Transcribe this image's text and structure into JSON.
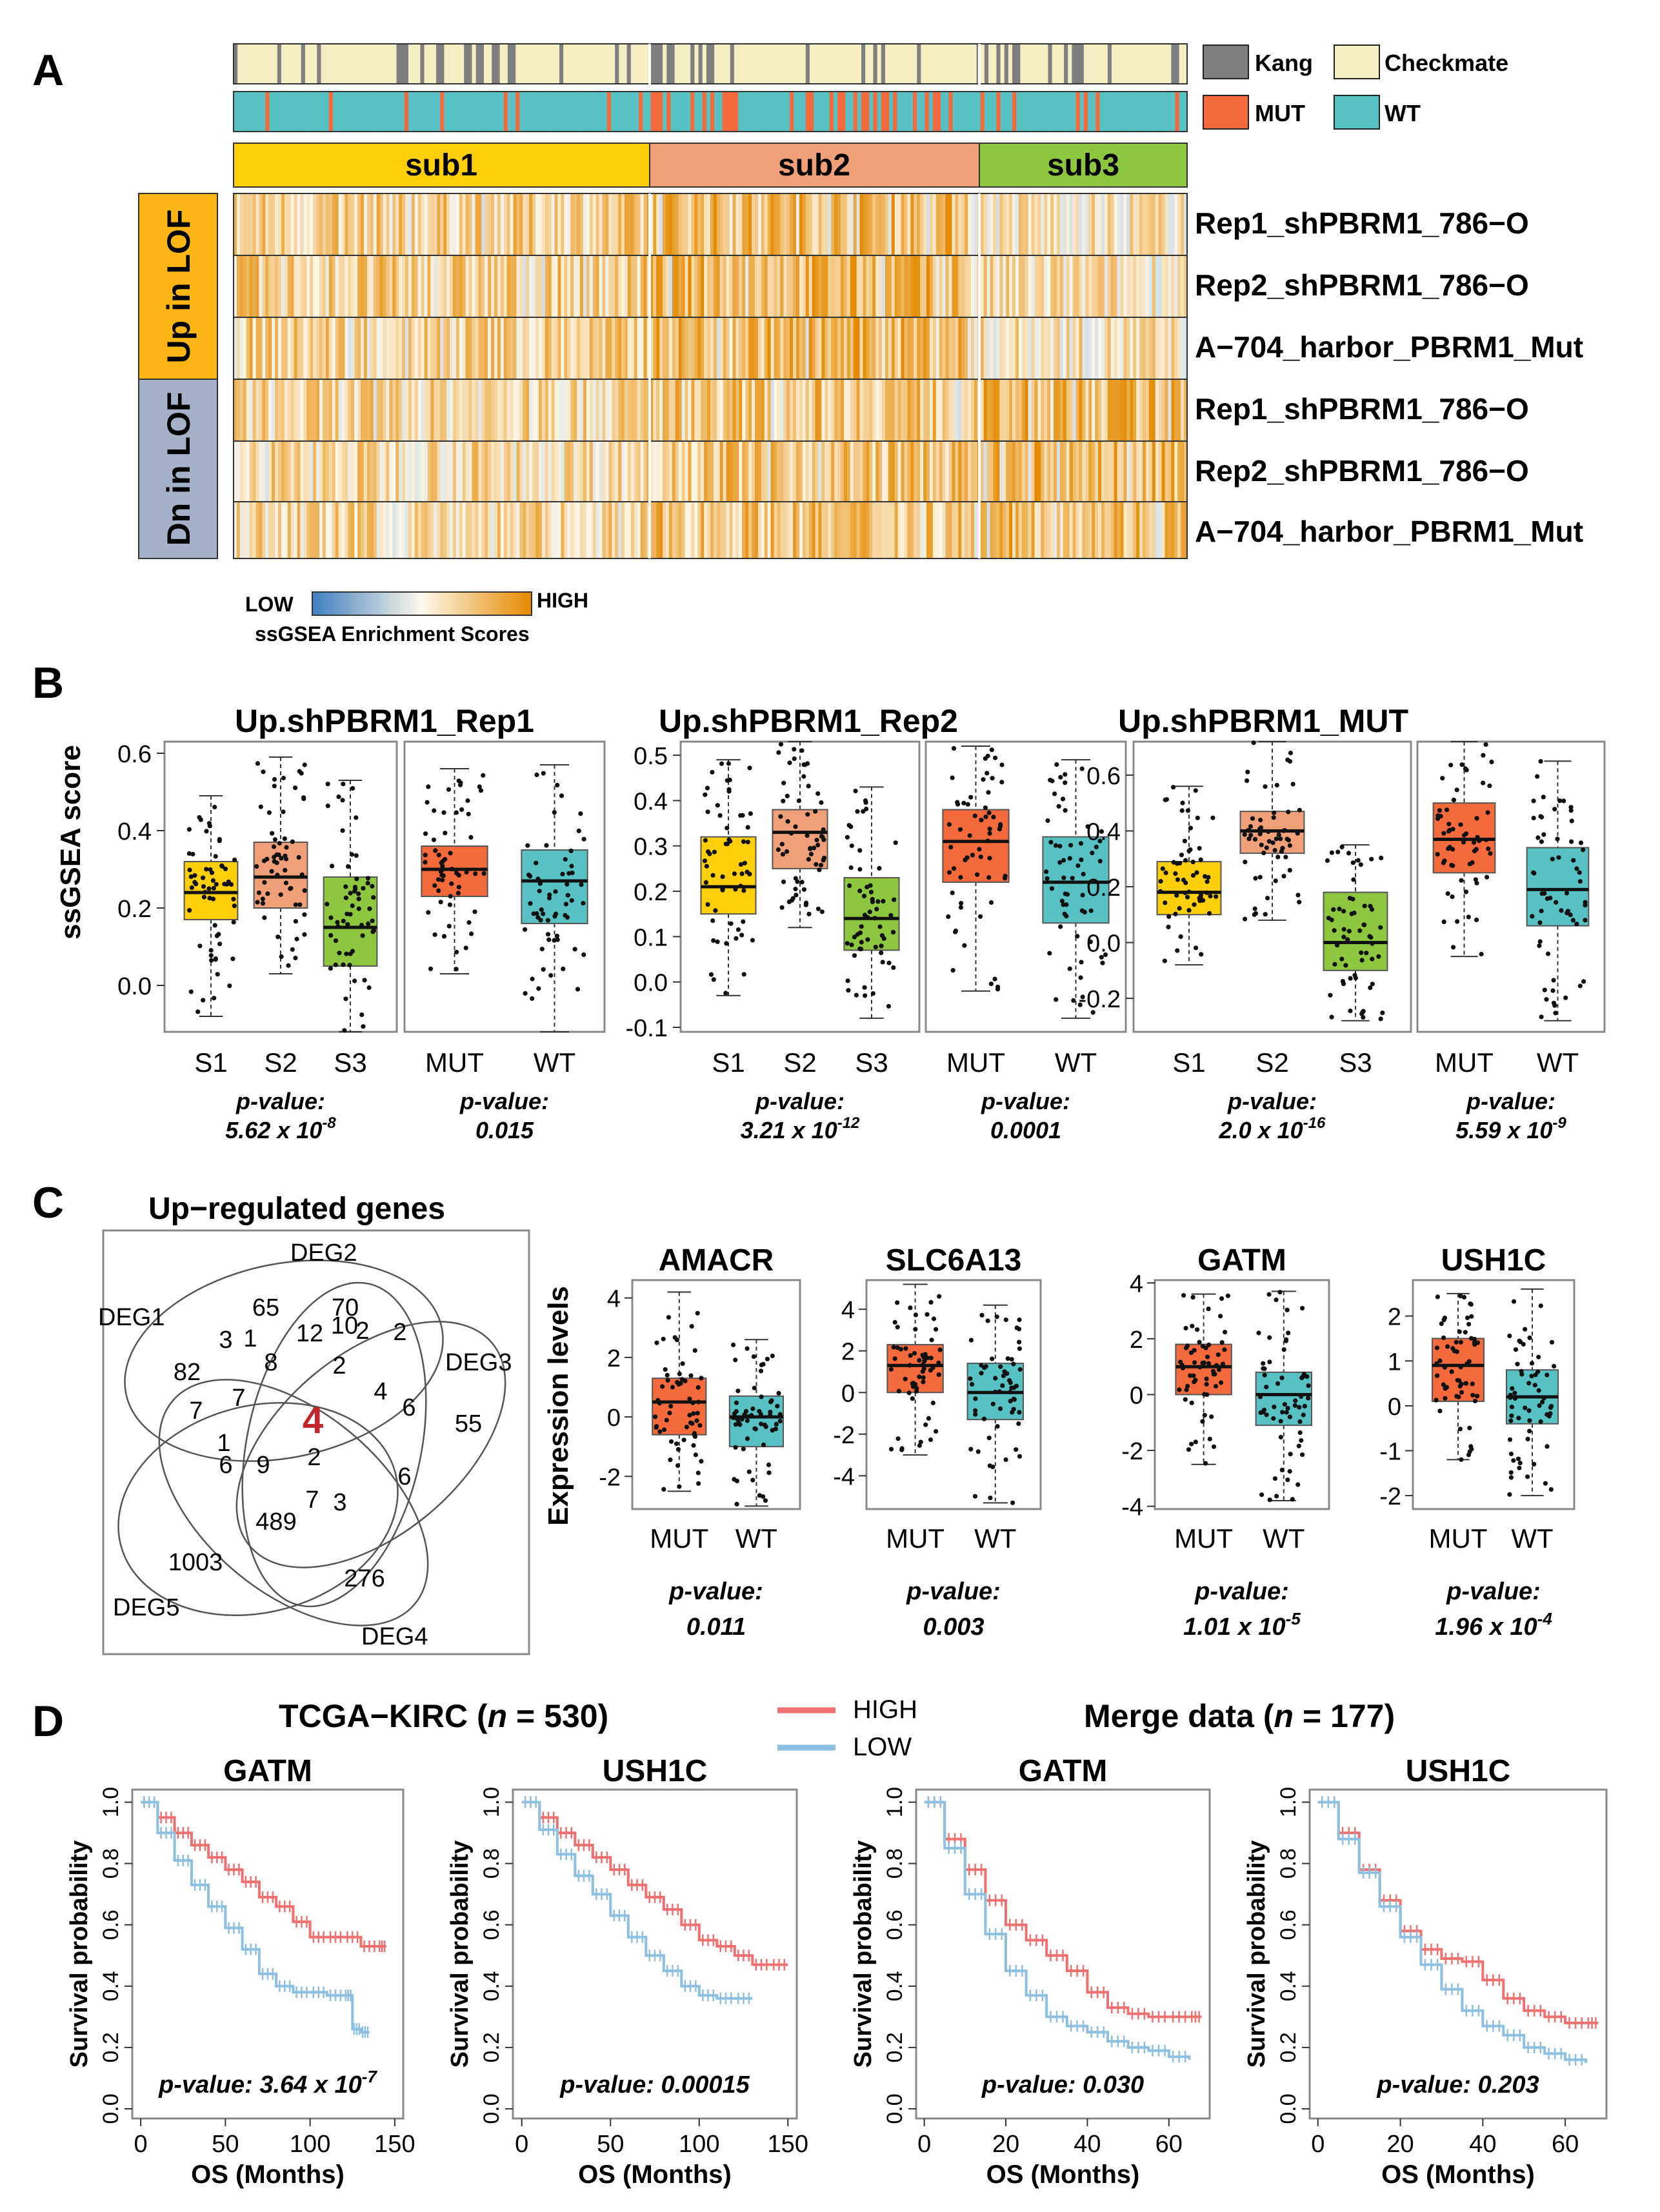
{
  "figure": {
    "panel_labels": [
      "A",
      "B",
      "C",
      "D"
    ]
  },
  "panel_a": {
    "legend_cohort": {
      "kang": "Kang",
      "checkmate": "Checkmate"
    },
    "legend_mutation": {
      "mut": "MUT",
      "wt": "WT"
    },
    "subtypes": [
      "sub1",
      "sub2",
      "sub3"
    ],
    "row_groups": [
      "Up in LOF",
      "Dn in LOF"
    ],
    "row_labels": [
      "Rep1_shPBRM1_786−O",
      "Rep2_shPBRM1_786−O",
      "A−704_harbor_PBRM1_Mut",
      "Rep1_shPBRM1_786−O",
      "Rep2_shPBRM1_786−O",
      "A−704_harbor_PBRM1_Mut"
    ],
    "colorbar": {
      "low": "LOW",
      "high": "HIGH",
      "title": "ssGSEA Enrichment Scores"
    },
    "colors": {
      "kang": "#7f7f7f",
      "checkmate": "#f5eec3",
      "mut": "#f46a3c",
      "wt": "#57c1c3",
      "sub1": "#fecf0a",
      "sub2": "#f0a079",
      "sub3": "#8dc63f",
      "high": "#e48a00",
      "low": "#4a86c5",
      "up_group": "#fbb616",
      "dn_group": "#a5b1c8"
    }
  },
  "panel_b": {
    "ylabel": "ssGSEA score",
    "charts": [
      {
        "title": "Up.shPBRM1_Rep1",
        "ylim": [
          -0.12,
          0.63
        ],
        "yticks": [
          "0.6",
          "0.4",
          "0.2",
          "0.0"
        ],
        "ytick_values": [
          0.6,
          0.4,
          0.2,
          0.0
        ],
        "subtype_box": {
          "categories": [
            "S1",
            "S2",
            "S3"
          ],
          "q1": [
            0.17,
            0.2,
            0.05
          ],
          "median": [
            0.24,
            0.28,
            0.15
          ],
          "q3": [
            0.32,
            0.37,
            0.28
          ],
          "lo": [
            -0.08,
            0.03,
            -0.12
          ],
          "hi": [
            0.49,
            0.59,
            0.53
          ]
        },
        "mut_box": {
          "categories": [
            "MUT",
            "WT"
          ],
          "q1": [
            0.23,
            0.16
          ],
          "median": [
            0.3,
            0.27
          ],
          "q3": [
            0.36,
            0.35
          ],
          "lo": [
            0.03,
            -0.12
          ],
          "hi": [
            0.56,
            0.57
          ]
        },
        "pvalues": [
          {
            "label": "p-value:",
            "value": "5.62  x 10",
            "exp": "-8"
          },
          {
            "label": "p-value:",
            "value": "0.015",
            "exp": ""
          }
        ]
      },
      {
        "title": "Up.shPBRM1_Rep2",
        "ylim": [
          -0.11,
          0.53
        ],
        "yticks": [
          "0.5",
          "0.4",
          "0.3",
          "0.2",
          "0.1",
          "0.0",
          "-0.1"
        ],
        "ytick_values": [
          0.5,
          0.4,
          0.3,
          0.2,
          0.1,
          0.0,
          -0.1
        ],
        "subtype_box": {
          "categories": [
            "S1",
            "S2",
            "S3"
          ],
          "q1": [
            0.15,
            0.25,
            0.07
          ],
          "median": [
            0.21,
            0.33,
            0.14
          ],
          "q3": [
            0.32,
            0.38,
            0.23
          ],
          "lo": [
            -0.03,
            0.12,
            -0.08
          ],
          "hi": [
            0.49,
            0.53,
            0.43
          ]
        },
        "mut_box": {
          "categories": [
            "MUT",
            "WT"
          ],
          "q1": [
            0.22,
            0.13
          ],
          "median": [
            0.31,
            0.22
          ],
          "q3": [
            0.38,
            0.32
          ],
          "lo": [
            -0.02,
            -0.08
          ],
          "hi": [
            0.52,
            0.49
          ]
        },
        "pvalues": [
          {
            "label": "p-value:",
            "value": "3.21  x 10",
            "exp": "-12"
          },
          {
            "label": "p-value:",
            "value": "0.0001",
            "exp": ""
          }
        ]
      },
      {
        "title": "Up.shPBRM1_MUT",
        "ylim": [
          -0.32,
          0.72
        ],
        "yticks": [
          "0.6",
          "0.4",
          "0.2",
          "0.0",
          "-0.2"
        ],
        "ytick_values": [
          0.6,
          0.4,
          0.2,
          0.0,
          -0.2
        ],
        "subtype_box": {
          "categories": [
            "S1",
            "S2",
            "S3"
          ],
          "q1": [
            0.1,
            0.32,
            -0.1
          ],
          "median": [
            0.18,
            0.4,
            0.0
          ],
          "q3": [
            0.29,
            0.47,
            0.18
          ],
          "lo": [
            -0.08,
            0.08,
            -0.28
          ],
          "hi": [
            0.56,
            0.72,
            0.35
          ]
        },
        "mut_box": {
          "categories": [
            "MUT",
            "WT"
          ],
          "q1": [
            0.25,
            0.06
          ],
          "median": [
            0.37,
            0.19
          ],
          "q3": [
            0.5,
            0.34
          ],
          "lo": [
            -0.05,
            -0.28
          ],
          "hi": [
            0.72,
            0.65
          ]
        },
        "pvalues": [
          {
            "label": "p-value:",
            "value": "2.0  x 10",
            "exp": "-16"
          },
          {
            "label": "p-value:",
            "value": "5.59  x 10",
            "exp": "-9"
          }
        ]
      }
    ]
  },
  "panel_c": {
    "venn_title": "Up−regulated genes",
    "venn_sets": [
      "DEG1",
      "DEG2",
      "DEG3",
      "DEG4",
      "DEG5"
    ],
    "venn_counts": [
      "82",
      "70",
      "55",
      "276",
      "1003",
      "65",
      "3",
      "1",
      "12",
      "10",
      "2",
      "2",
      "8",
      "2",
      "7",
      "7",
      "4",
      "6",
      "1",
      "6",
      "9",
      "2",
      "6",
      "7",
      "3",
      "489",
      "4"
    ],
    "center_value": "4",
    "ylabel": "Expression levels",
    "categories": [
      "MUT",
      "WT"
    ],
    "genes": [
      {
        "name": "AMACR",
        "ylim": [
          -3.1,
          4.6
        ],
        "yticks": [
          "4",
          "2",
          "0",
          "-2"
        ],
        "ytick_values": [
          4,
          2,
          0,
          -2
        ],
        "q1": [
          -0.6,
          -1.0
        ],
        "median": [
          0.5,
          0.0
        ],
        "q3": [
          1.3,
          0.7
        ],
        "lo": [
          -2.5,
          -3.0
        ],
        "hi": [
          4.2,
          2.6
        ],
        "pvalue": "0.011",
        "exp": ""
      },
      {
        "name": "SLC6A13",
        "ylim": [
          -5.6,
          5.4
        ],
        "yticks": [
          "4",
          "2",
          "0",
          "-2",
          "-4"
        ],
        "ytick_values": [
          4,
          2,
          0,
          -2,
          -4
        ],
        "q1": [
          0.0,
          -1.3
        ],
        "median": [
          1.3,
          0.0
        ],
        "q3": [
          2.3,
          1.4
        ],
        "lo": [
          -3.0,
          -5.3
        ],
        "hi": [
          5.2,
          4.2
        ],
        "pvalue": "0.003",
        "exp": ""
      },
      {
        "name": "GATM",
        "ylim": [
          -4.1,
          4.1
        ],
        "yticks": [
          "4",
          "2",
          "0",
          "-2",
          "-4"
        ],
        "ytick_values": [
          4,
          2,
          0,
          -2,
          -4
        ],
        "q1": [
          0.0,
          -1.1
        ],
        "median": [
          1.0,
          0.0
        ],
        "q3": [
          1.8,
          0.8
        ],
        "lo": [
          -2.5,
          -3.8
        ],
        "hi": [
          3.6,
          3.7
        ],
        "pvalue": "1.01  x 10",
        "exp": "-5"
      },
      {
        "name": "USH1C",
        "ylim": [
          -2.3,
          2.8
        ],
        "yticks": [
          "2",
          "1",
          "0",
          "-1",
          "-2"
        ],
        "ytick_values": [
          2,
          1,
          0,
          -1,
          -2
        ],
        "q1": [
          0.1,
          -0.4
        ],
        "median": [
          0.9,
          0.2
        ],
        "q3": [
          1.5,
          0.8
        ],
        "lo": [
          -1.2,
          -2.0
        ],
        "hi": [
          2.5,
          2.6
        ],
        "pvalue": "1.96  x 10",
        "exp": "-4"
      }
    ],
    "pvalue_label": "p-value:"
  },
  "panel_d": {
    "cohort1": {
      "label": "TCGA−KIRC (",
      "n_label": "n",
      "n_value": " = 530)"
    },
    "cohort2": {
      "label": "Merge data (",
      "n_label": "n",
      "n_value": " = 177)"
    },
    "legend": {
      "high": "HIGH",
      "low": "LOW"
    },
    "ylabel": "Survival probability",
    "xlabel": "OS (Months)",
    "yticks": [
      "1.0",
      "0.8",
      "0.6",
      "0.4",
      "0.2",
      "0.0"
    ],
    "colors": {
      "high": "#f07070",
      "low": "#8dbfe0"
    },
    "chart_data": [
      {
        "type": "line",
        "title": "GATM",
        "xlabel": "OS (Months)",
        "ylabel": "Survival probability",
        "xlim": [
          -5,
          155
        ],
        "ylim": [
          0,
          1.02
        ],
        "xticks": [
          0,
          50,
          100,
          150
        ],
        "series": [
          {
            "name": "HIGH",
            "x": [
              0,
              10,
              20,
              30,
              40,
              50,
              60,
              70,
              80,
              90,
              100,
              110,
              120,
              130,
              140,
              145
            ],
            "y": [
              1.0,
              0.95,
              0.9,
              0.86,
              0.82,
              0.78,
              0.74,
              0.69,
              0.66,
              0.61,
              0.56,
              0.56,
              0.56,
              0.53,
              0.53,
              0.53
            ]
          },
          {
            "name": "LOW",
            "x": [
              0,
              10,
              20,
              30,
              40,
              50,
              60,
              70,
              80,
              90,
              100,
              110,
              120,
              125,
              130,
              135
            ],
            "y": [
              1.0,
              0.9,
              0.81,
              0.73,
              0.66,
              0.59,
              0.52,
              0.44,
              0.4,
              0.38,
              0.38,
              0.37,
              0.37,
              0.26,
              0.25,
              0.25
            ]
          }
        ],
        "pvalue": "3.64  x 10",
        "exp": "-7"
      },
      {
        "type": "line",
        "title": "USH1C",
        "xlabel": "OS (Months)",
        "ylabel": "Survival probability",
        "xlim": [
          -5,
          155
        ],
        "ylim": [
          0,
          1.02
        ],
        "xticks": [
          0,
          50,
          100,
          150
        ],
        "series": [
          {
            "name": "HIGH",
            "x": [
              0,
              10,
              20,
              30,
              40,
              50,
              60,
              70,
              80,
              90,
              100,
              110,
              120,
              130,
              140,
              150
            ],
            "y": [
              1.0,
              0.95,
              0.9,
              0.86,
              0.82,
              0.78,
              0.73,
              0.69,
              0.65,
              0.6,
              0.55,
              0.53,
              0.5,
              0.47,
              0.47,
              0.47
            ]
          },
          {
            "name": "LOW",
            "x": [
              0,
              10,
              20,
              30,
              40,
              50,
              60,
              70,
              80,
              90,
              100,
              110,
              120,
              130
            ],
            "y": [
              1.0,
              0.91,
              0.83,
              0.76,
              0.7,
              0.63,
              0.56,
              0.5,
              0.45,
              0.4,
              0.37,
              0.36,
              0.36,
              0.36
            ]
          }
        ],
        "pvalue": "0.00015",
        "exp": ""
      },
      {
        "type": "line",
        "title": "GATM",
        "xlabel": "OS (Months)",
        "ylabel": "Survival probability",
        "xlim": [
          -2,
          70
        ],
        "ylim": [
          0,
          1.02
        ],
        "xticks": [
          0,
          20,
          40,
          60
        ],
        "series": [
          {
            "name": "HIGH",
            "x": [
              0,
              5,
              10,
              15,
              20,
              25,
              30,
              35,
              40,
              45,
              50,
              55,
              60,
              65,
              68
            ],
            "y": [
              1.0,
              0.88,
              0.78,
              0.68,
              0.6,
              0.55,
              0.5,
              0.45,
              0.38,
              0.33,
              0.31,
              0.3,
              0.3,
              0.3,
              0.3
            ]
          },
          {
            "name": "LOW",
            "x": [
              0,
              5,
              10,
              15,
              20,
              25,
              30,
              35,
              40,
              45,
              50,
              55,
              60,
              65
            ],
            "y": [
              1.0,
              0.85,
              0.7,
              0.57,
              0.45,
              0.37,
              0.3,
              0.27,
              0.25,
              0.22,
              0.2,
              0.19,
              0.17,
              0.16
            ]
          }
        ],
        "pvalue": "0.030",
        "exp": ""
      },
      {
        "type": "line",
        "title": "USH1C",
        "xlabel": "OS (Months)",
        "ylabel": "Survival probability",
        "xlim": [
          -2,
          70
        ],
        "ylim": [
          0,
          1.02
        ],
        "xticks": [
          0,
          20,
          40,
          60
        ],
        "series": [
          {
            "name": "HIGH",
            "x": [
              0,
              5,
              10,
              15,
              20,
              25,
              30,
              35,
              40,
              45,
              50,
              55,
              60,
              65,
              68
            ],
            "y": [
              1.0,
              0.9,
              0.78,
              0.68,
              0.58,
              0.52,
              0.49,
              0.48,
              0.42,
              0.36,
              0.32,
              0.3,
              0.28,
              0.28,
              0.28
            ]
          },
          {
            "name": "LOW",
            "x": [
              0,
              5,
              10,
              15,
              20,
              25,
              30,
              35,
              40,
              45,
              50,
              55,
              60,
              65
            ],
            "y": [
              1.0,
              0.88,
              0.77,
              0.66,
              0.56,
              0.47,
              0.39,
              0.32,
              0.27,
              0.24,
              0.2,
              0.18,
              0.16,
              0.15
            ]
          }
        ],
        "pvalue": "0.203",
        "exp": ""
      }
    ],
    "pvalue_label": "p-value: "
  }
}
